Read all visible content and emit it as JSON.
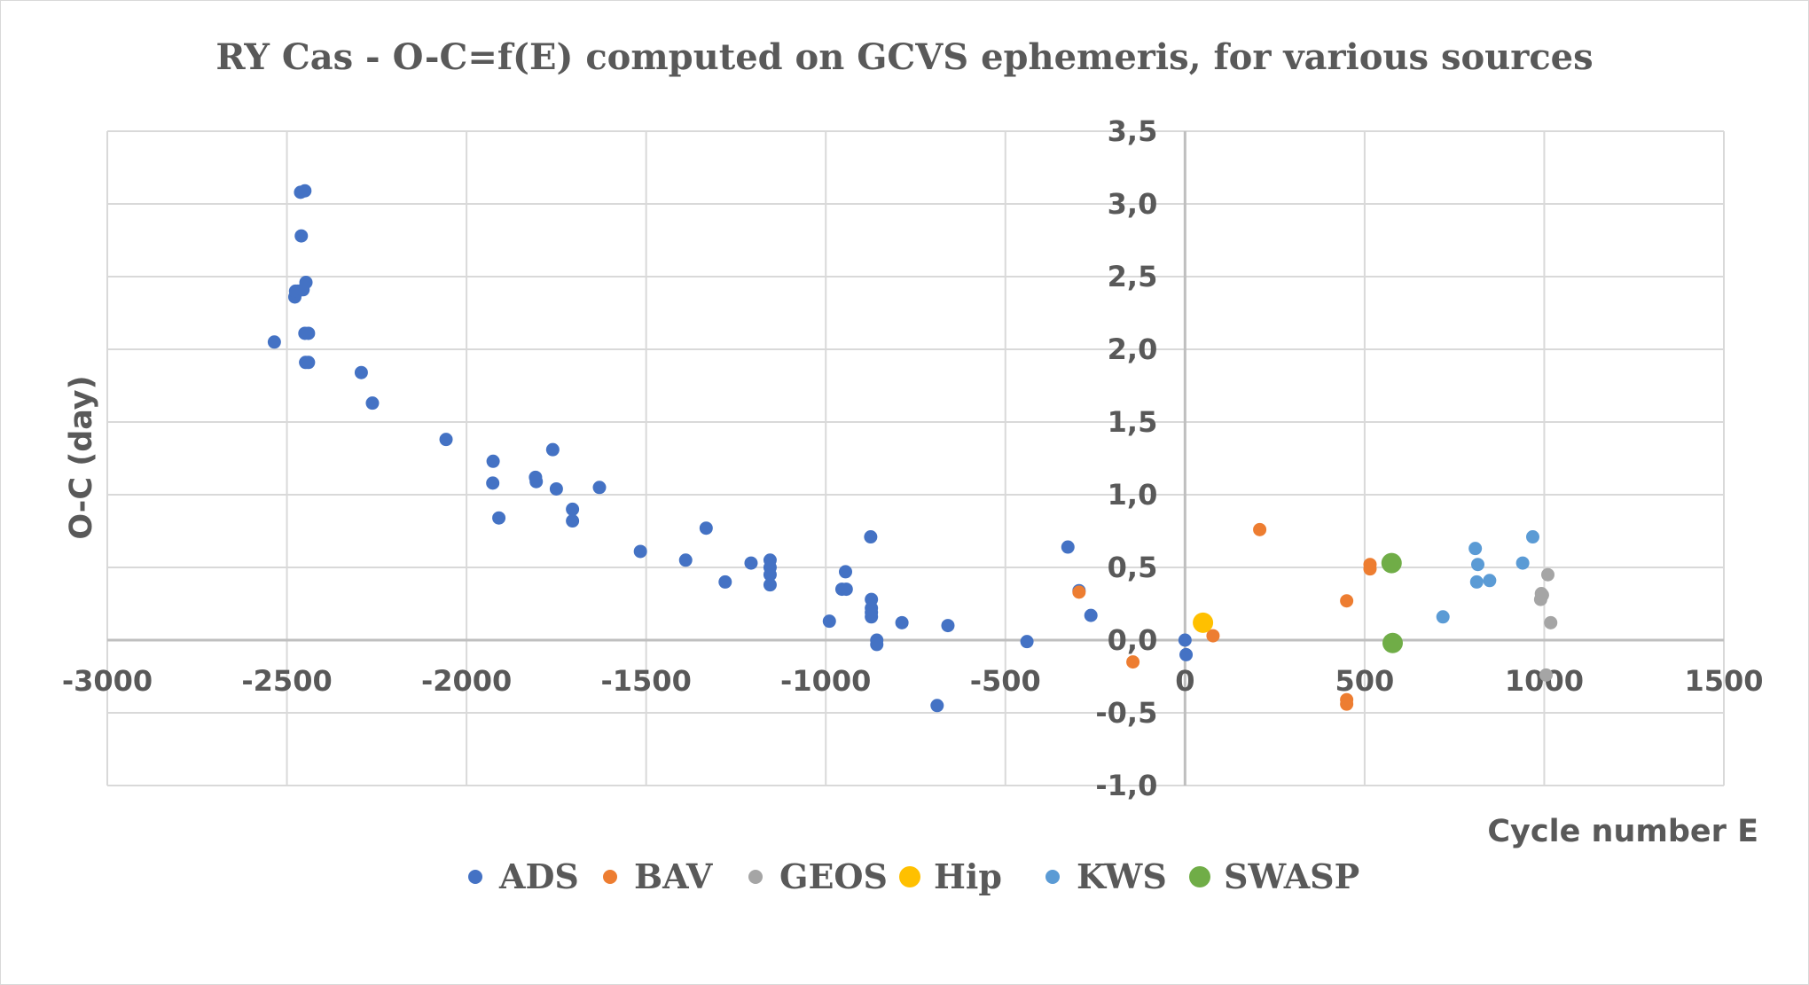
{
  "chart_data": {
    "type": "scatter",
    "title": "RY Cas - O-C=f(E) computed on GCVS ephemeris, for various sources",
    "xlabel": "Cycle number E",
    "ylabel": "O-C (day)",
    "xlim": [
      -3000,
      1500
    ],
    "ylim": [
      -1.0,
      3.5
    ],
    "x_ticks": [
      -3000,
      -2500,
      -2000,
      -1500,
      -1000,
      -500,
      0,
      500,
      1000,
      1500
    ],
    "x_tick_labels": [
      "-3000",
      "-2500",
      "-2000",
      "-1500",
      "-1000",
      "-500",
      "0",
      "500",
      "1000",
      "1500"
    ],
    "y_ticks": [
      -1.0,
      -0.5,
      0.0,
      0.5,
      1.0,
      1.5,
      2.0,
      2.5,
      3.0,
      3.5
    ],
    "y_tick_labels": [
      "-1,0",
      "-0,5",
      "0,0",
      "0,5",
      "1,0",
      "1,5",
      "2,0",
      "2,5",
      "3,0",
      "3,5"
    ],
    "grid": true,
    "legend_position": "bottom",
    "series": [
      {
        "name": "ADS",
        "color": "#4472c4",
        "marker_size": "small",
        "points": [
          [
            -2535,
            2.05
          ],
          [
            -2478,
            2.36
          ],
          [
            -2476,
            2.4
          ],
          [
            -2470,
            2.4
          ],
          [
            -2462,
            3.08
          ],
          [
            -2460,
            2.78
          ],
          [
            -2455,
            2.41
          ],
          [
            -2450,
            2.11
          ],
          [
            -2450,
            3.09
          ],
          [
            -2448,
            1.91
          ],
          [
            -2447,
            2.46
          ],
          [
            -2440,
            2.11
          ],
          [
            -2440,
            1.91
          ],
          [
            -2293,
            1.84
          ],
          [
            -2262,
            1.63
          ],
          [
            -2057,
            1.38
          ],
          [
            -1926,
            1.23
          ],
          [
            -1927,
            1.08
          ],
          [
            -1910,
            0.84
          ],
          [
            -1808,
            1.12
          ],
          [
            -1806,
            1.09
          ],
          [
            -1760,
            1.31
          ],
          [
            -1750,
            1.04
          ],
          [
            -1705,
            0.9
          ],
          [
            -1705,
            0.82
          ],
          [
            -1630,
            1.05
          ],
          [
            -1516,
            0.61
          ],
          [
            -1390,
            0.55
          ],
          [
            -1333,
            0.77
          ],
          [
            -1280,
            0.4
          ],
          [
            -1208,
            0.53
          ],
          [
            -1155,
            0.55
          ],
          [
            -1155,
            0.5
          ],
          [
            -1155,
            0.45
          ],
          [
            -1155,
            0.38
          ],
          [
            -990,
            0.13
          ],
          [
            -955,
            0.35
          ],
          [
            -945,
            0.47
          ],
          [
            -943,
            0.35
          ],
          [
            -875,
            0.71
          ],
          [
            -873,
            0.28
          ],
          [
            -873,
            0.22
          ],
          [
            -873,
            0.19
          ],
          [
            -873,
            0.16
          ],
          [
            -858,
            0.0
          ],
          [
            -858,
            -0.03
          ],
          [
            -788,
            0.12
          ],
          [
            -690,
            -0.45
          ],
          [
            -660,
            0.1
          ],
          [
            -440,
            -0.01
          ],
          [
            -326,
            0.64
          ],
          [
            -295,
            0.34
          ],
          [
            -262,
            0.17
          ],
          [
            0,
            0.0
          ],
          [
            3,
            -0.1
          ]
        ]
      },
      {
        "name": "BAV",
        "color": "#ed7d31",
        "marker_size": "small",
        "points": [
          [
            -295,
            0.33
          ],
          [
            -145,
            -0.15
          ],
          [
            78,
            0.03
          ],
          [
            208,
            0.76
          ],
          [
            450,
            0.27
          ],
          [
            450,
            -0.41
          ],
          [
            450,
            -0.44
          ],
          [
            515,
            0.52
          ],
          [
            515,
            0.49
          ]
        ]
      },
      {
        "name": "GEOS",
        "color": "#a5a5a5",
        "marker_size": "small",
        "points": [
          [
            990,
            0.28
          ],
          [
            992,
            0.32
          ],
          [
            995,
            0.31
          ],
          [
            1005,
            -0.24
          ],
          [
            1010,
            0.45
          ],
          [
            1018,
            0.12
          ]
        ]
      },
      {
        "name": "Hip",
        "color": "#ffc000",
        "marker_size": "large",
        "points": [
          [
            50,
            0.12
          ]
        ]
      },
      {
        "name": "KWS",
        "color": "#5b9bd5",
        "marker_size": "small",
        "points": [
          [
            718,
            0.16
          ],
          [
            808,
            0.63
          ],
          [
            812,
            0.4
          ],
          [
            815,
            0.52
          ],
          [
            848,
            0.41
          ],
          [
            940,
            0.53
          ],
          [
            968,
            0.71
          ]
        ]
      },
      {
        "name": "SWASP",
        "color": "#70ad47",
        "marker_size": "large",
        "points": [
          [
            575,
            0.53
          ],
          [
            578,
            -0.02
          ]
        ]
      }
    ]
  },
  "colors": {
    "grid": "#d9d9d9",
    "text": "#595959"
  }
}
